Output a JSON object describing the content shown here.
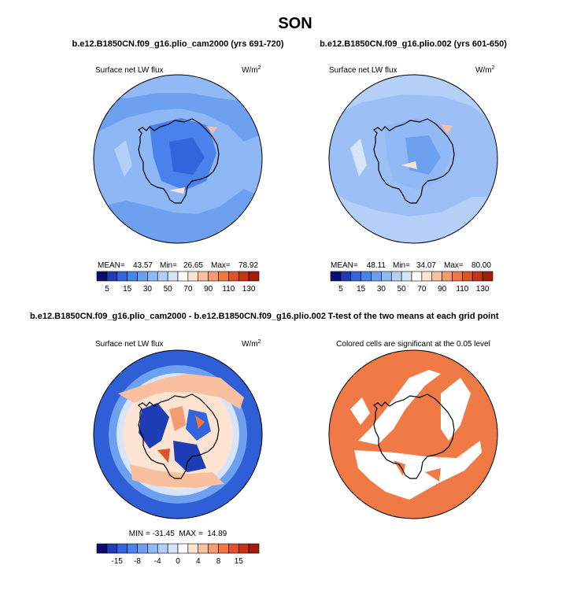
{
  "page": {
    "title": "SON"
  },
  "panels": [
    {
      "header": "b.e12.B1850CN.f09_g16.plio_cam2000 (yrs 691-720)",
      "variable": "Surface net LW flux",
      "units_base": "W/m",
      "units_exp": "2",
      "stats": {
        "mean_label": "MEAN=",
        "mean": "43.57",
        "min_label": "Min=",
        "min": "26.65",
        "max_label": "Max=",
        "max": "78.92"
      }
    },
    {
      "header": "b.e12.B1850CN.f09_g16.plio.002 (yrs 601-650)",
      "variable": "Surface net LW flux",
      "units_base": "W/m",
      "units_exp": "2",
      "stats": {
        "mean_label": "MEAN=",
        "mean": "48.11",
        "min_label": "Min=",
        "min": "34.07",
        "max_label": "Max=",
        "max": "80.00"
      }
    },
    {
      "header": "b.e12.B1850CN.f09_g16.plio_cam2000 - b.e12.B1850CN.f09_g16.plio.002",
      "variable": "Surface net LW flux",
      "units_base": "W/m",
      "units_exp": "2",
      "stats_text": "MIN = -31.45  MAX =  14.89"
    },
    {
      "header": "T-test of the two means at each grid point",
      "subtitle": "Colored cells are significant at the 0.05 level"
    }
  ],
  "chart_data": [
    {
      "type": "heatmap",
      "projection": "south-polar-stereographic",
      "title": "b.e12.B1850CN.f09_g16.plio_cam2000 (yrs 691-720)",
      "variable": "Surface net LW flux",
      "units": "W/m2",
      "mean": 43.57,
      "min": 26.65,
      "max": 78.92,
      "colorbar": {
        "levels": [
          5,
          10,
          15,
          20,
          30,
          40,
          50,
          60,
          70,
          80,
          90,
          100,
          110,
          120,
          130
        ],
        "tick_labels": [
          "5",
          "15",
          "30",
          "50",
          "70",
          "90",
          "110",
          "130"
        ],
        "colors": [
          "#0a0f6e",
          "#1e3cb4",
          "#3264dc",
          "#4a82ec",
          "#6ea0f0",
          "#91b9f5",
          "#b4cff8",
          "#d7e5fb",
          "#ffffff",
          "#fde4d2",
          "#f9c0a0",
          "#f59b72",
          "#f07648",
          "#e0522c",
          "#c33418",
          "#a01e0e"
        ]
      },
      "dominant_range": [
        30,
        50
      ]
    },
    {
      "type": "heatmap",
      "projection": "south-polar-stereographic",
      "title": "b.e12.B1850CN.f09_g16.plio.002 (yrs 601-650)",
      "variable": "Surface net LW flux",
      "units": "W/m2",
      "mean": 48.11,
      "min": 34.07,
      "max": 80.0,
      "colorbar": {
        "levels": [
          5,
          10,
          15,
          20,
          30,
          40,
          50,
          60,
          70,
          80,
          90,
          100,
          110,
          120,
          130
        ],
        "tick_labels": [
          "5",
          "15",
          "30",
          "50",
          "70",
          "90",
          "110",
          "130"
        ],
        "colors": [
          "#0a0f6e",
          "#1e3cb4",
          "#3264dc",
          "#4a82ec",
          "#6ea0f0",
          "#91b9f5",
          "#b4cff8",
          "#d7e5fb",
          "#ffffff",
          "#fde4d2",
          "#f9c0a0",
          "#f59b72",
          "#f07648",
          "#e0522c",
          "#c33418",
          "#a01e0e"
        ]
      },
      "dominant_range": [
        40,
        60
      ]
    },
    {
      "type": "heatmap",
      "projection": "south-polar-stereographic",
      "title": "b.e12.B1850CN.f09_g16.plio_cam2000 - b.e12.B1850CN.f09_g16.plio.002",
      "variable": "Surface net LW flux difference",
      "units": "W/m2",
      "min": -31.45,
      "max": 14.89,
      "colorbar": {
        "levels": [
          -20,
          -15,
          -10,
          -8,
          -6,
          -4,
          -2,
          0,
          2,
          4,
          6,
          8,
          10,
          15,
          20
        ],
        "tick_labels": [
          "-15",
          "-8",
          "-4",
          "0",
          "4",
          "8",
          "15"
        ],
        "colors": [
          "#0a0f6e",
          "#1e3cb4",
          "#3264dc",
          "#4a82ec",
          "#6ea0f0",
          "#91b9f5",
          "#b4cff8",
          "#d7e5fb",
          "#ffffff",
          "#fde4d2",
          "#f9c0a0",
          "#f59b72",
          "#f07648",
          "#e0522c",
          "#c33418",
          "#a01e0e"
        ]
      }
    },
    {
      "type": "heatmap",
      "projection": "south-polar-stereographic",
      "title": "T-test of the two means at each grid point",
      "subtitle": "Colored cells are significant at the 0.05 level",
      "significance_level": 0.05,
      "significant_color": "#f07a45",
      "not_significant_color": "#ffffff"
    }
  ]
}
